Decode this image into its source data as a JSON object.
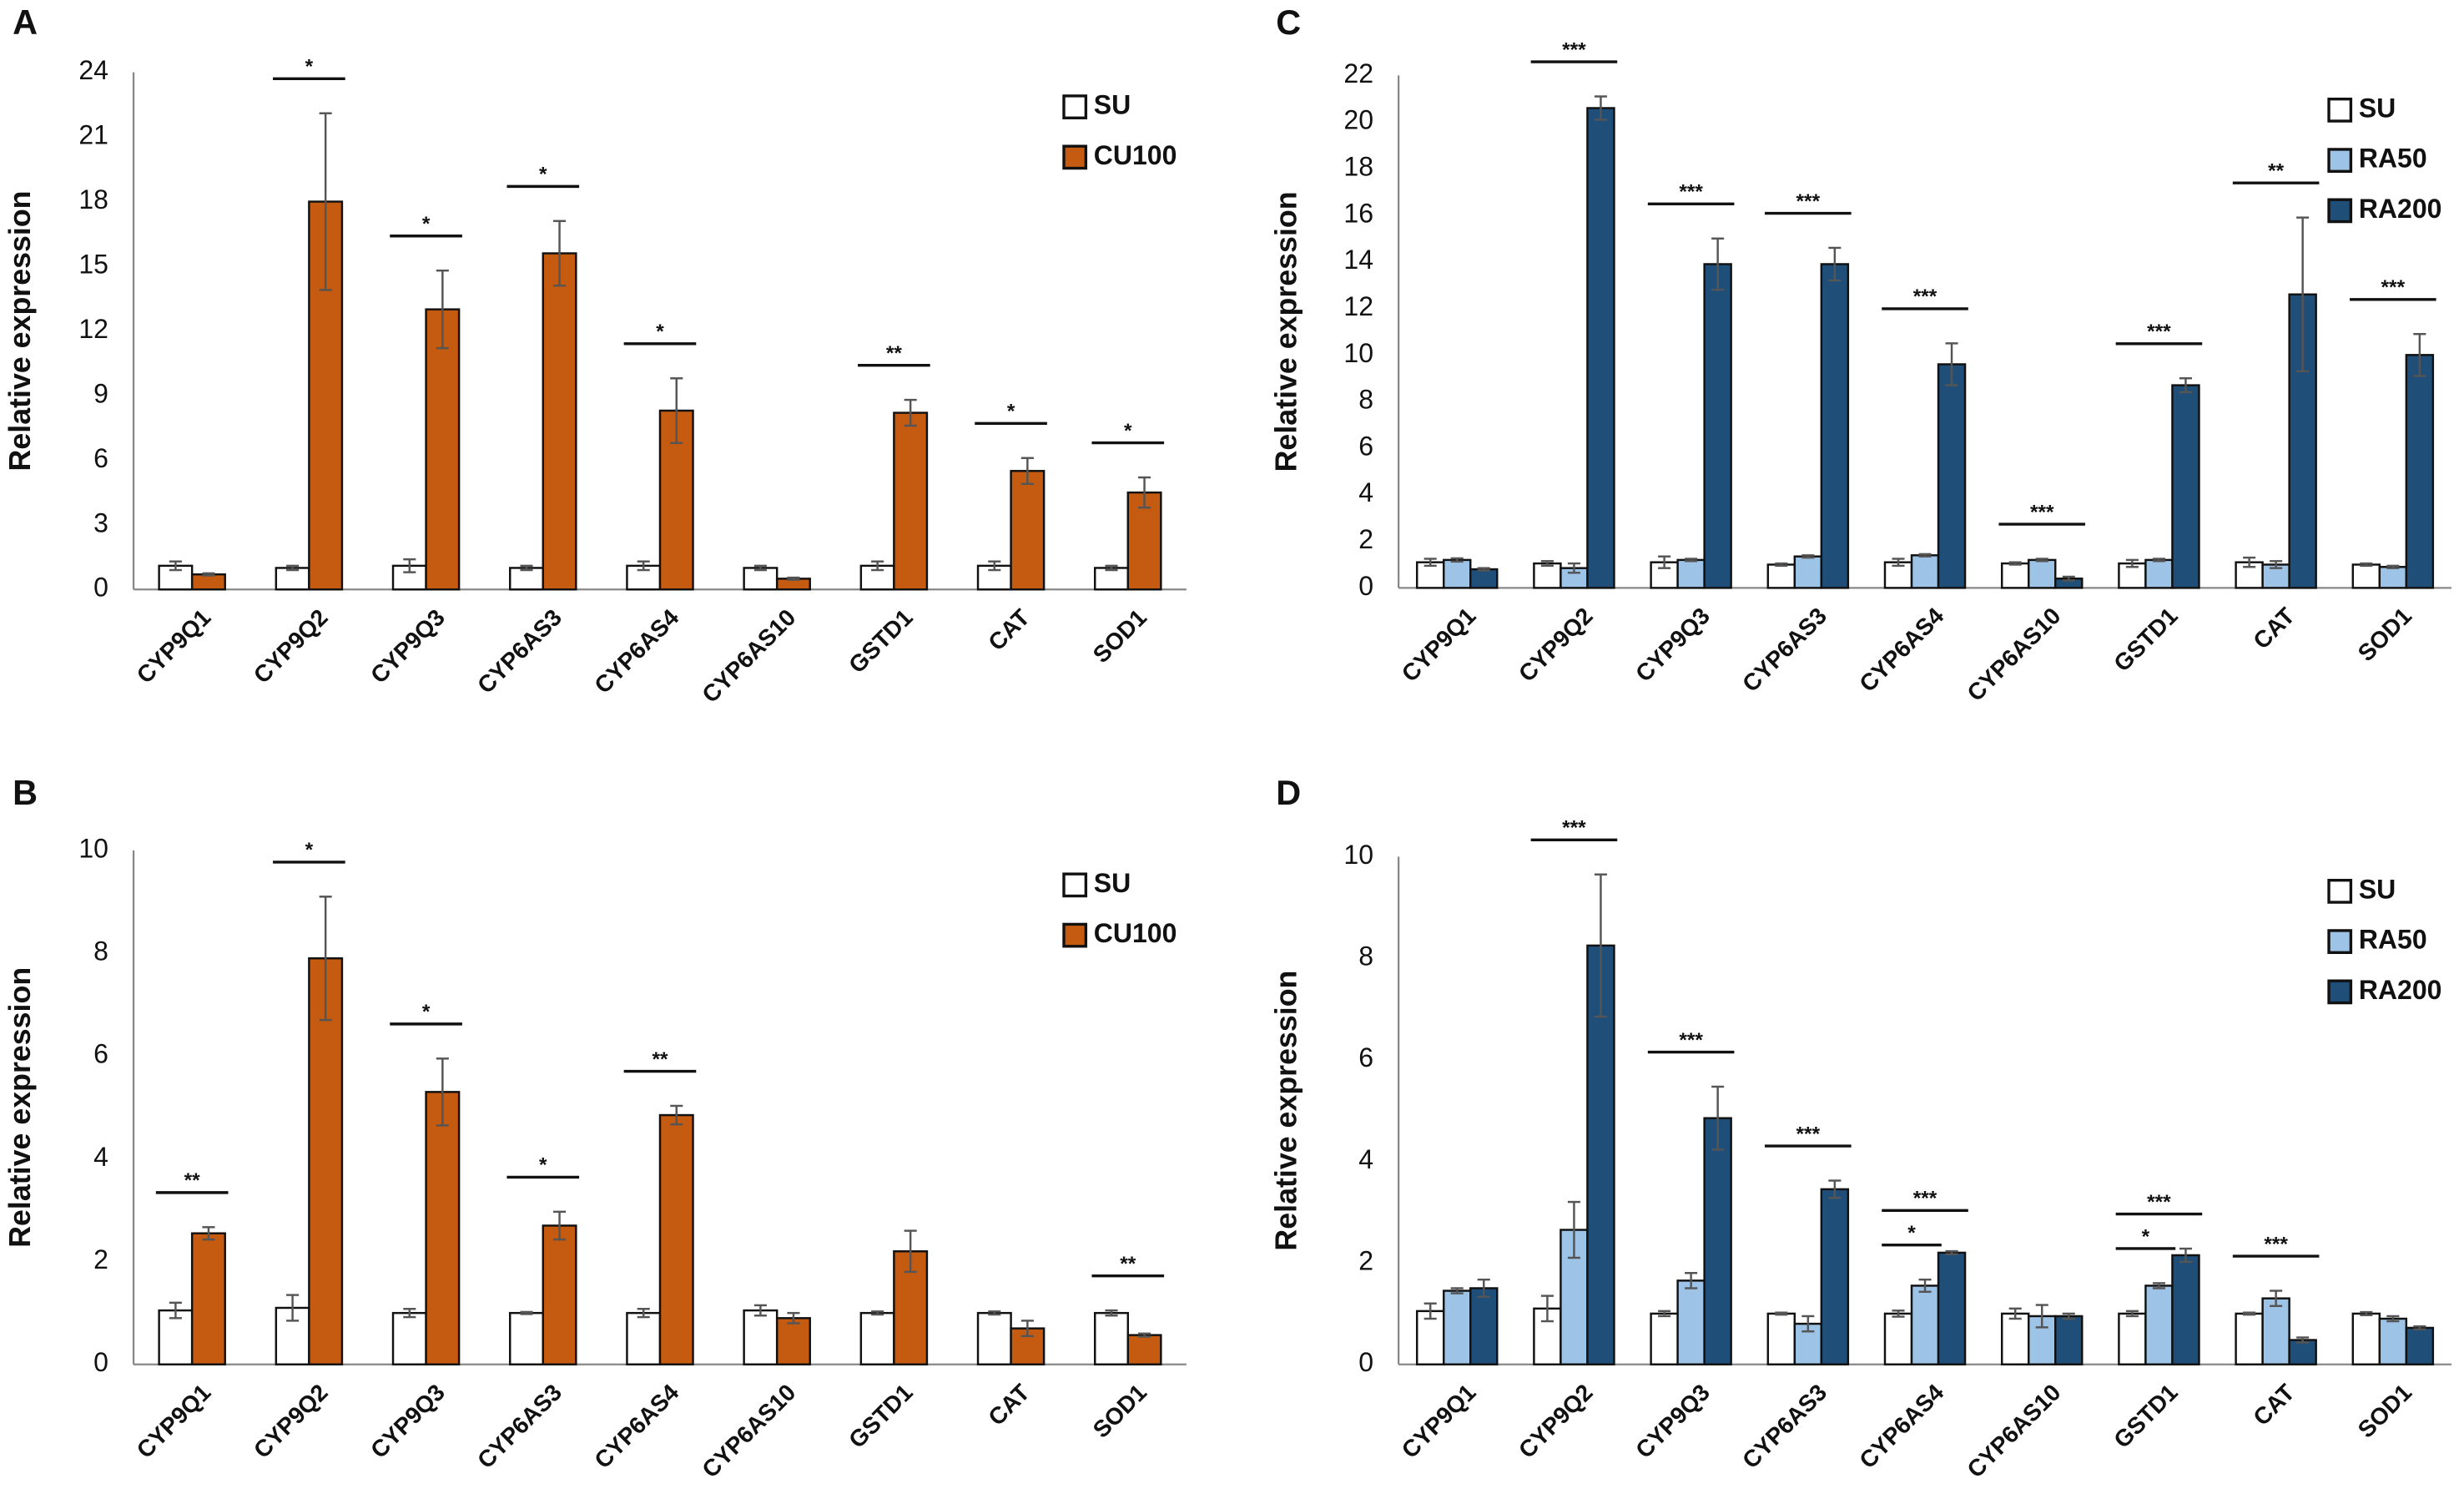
{
  "chart_data": [
    {
      "type": "bar",
      "panel": "A",
      "y_label": "Relative expression",
      "categories": [
        "CYP9Q1",
        "CYP9Q2",
        "CYP9Q3",
        "CYP6AS3",
        "CYP6AS4",
        "CYP6AS10",
        "GSTD1",
        "CAT",
        "SOD1"
      ],
      "series": [
        {
          "name": "SU",
          "color": "#ffffff",
          "values": [
            1.1,
            1.0,
            1.1,
            1.0,
            1.1,
            1.0,
            1.1,
            1.1,
            1.0
          ],
          "errors": [
            0.2,
            0.1,
            0.3,
            0.1,
            0.2,
            0.1,
            0.2,
            0.2,
            0.1
          ]
        },
        {
          "name": "CU100",
          "color": "#c55a11",
          "values": [
            0.7,
            18.0,
            13.0,
            15.6,
            8.3,
            0.5,
            8.2,
            5.5,
            4.5
          ],
          "errors": [
            0.05,
            4.1,
            1.8,
            1.5,
            1.5,
            0.05,
            0.6,
            0.6,
            0.7
          ],
          "significance": [
            null,
            "*",
            "*",
            "*",
            "*",
            null,
            "**",
            "*",
            "*"
          ]
        }
      ],
      "ylim": [
        0,
        24
      ],
      "yticks": [
        0,
        3,
        6,
        9,
        12,
        15,
        18,
        21,
        24
      ],
      "grid": false,
      "legend": "upper right"
    },
    {
      "type": "bar",
      "panel": "B",
      "y_label": "Relative expression",
      "categories": [
        "CYP9Q1",
        "CYP9Q2",
        "CYP9Q3",
        "CYP6AS3",
        "CYP6AS4",
        "CYP6AS10",
        "GSTD1",
        "CAT",
        "SOD1"
      ],
      "series": [
        {
          "name": "SU",
          "color": "#ffffff",
          "values": [
            1.05,
            1.1,
            1.0,
            1.0,
            1.0,
            1.05,
            1.0,
            1.0,
            1.0
          ],
          "errors": [
            0.15,
            0.25,
            0.08,
            0.02,
            0.08,
            0.1,
            0.03,
            0.03,
            0.05
          ]
        },
        {
          "name": "CU100",
          "color": "#c55a11",
          "values": [
            2.55,
            7.9,
            5.3,
            2.7,
            4.85,
            0.9,
            2.2,
            0.7,
            0.57
          ],
          "errors": [
            0.12,
            1.2,
            0.65,
            0.27,
            0.18,
            0.1,
            0.4,
            0.15,
            0.03
          ],
          "significance": [
            "**",
            "*",
            "*",
            "*",
            "**",
            null,
            null,
            null,
            "**"
          ]
        }
      ],
      "ylim": [
        0,
        10
      ],
      "yticks": [
        0,
        2,
        4,
        6,
        8,
        10
      ],
      "grid": false,
      "legend": "upper right"
    },
    {
      "type": "bar",
      "panel": "C",
      "y_label": "Relative expression",
      "categories": [
        "CYP9Q1",
        "CYP9Q2",
        "CYP9Q3",
        "CYP6AS3",
        "CYP6AS4",
        "CYP6AS10",
        "GSTD1",
        "CAT",
        "SOD1"
      ],
      "series": [
        {
          "name": "SU",
          "color": "#ffffff",
          "values": [
            1.1,
            1.05,
            1.1,
            1.0,
            1.1,
            1.05,
            1.05,
            1.1,
            1.0
          ],
          "errors": [
            0.15,
            0.1,
            0.25,
            0.05,
            0.15,
            0.05,
            0.15,
            0.2,
            0.05
          ]
        },
        {
          "name": "RA50",
          "color": "#9dc3e6",
          "values": [
            1.2,
            0.85,
            1.2,
            1.35,
            1.4,
            1.2,
            1.2,
            1.0,
            0.9
          ],
          "errors": [
            0.07,
            0.2,
            0.05,
            0.05,
            0.05,
            0.05,
            0.05,
            0.15,
            0.05
          ]
        },
        {
          "name": "RA200",
          "color": "#1f4e79",
          "values": [
            0.8,
            20.6,
            13.9,
            13.9,
            9.6,
            0.4,
            8.7,
            12.6,
            10.0
          ],
          "errors": [
            0.05,
            0.5,
            1.1,
            0.7,
            0.9,
            0.08,
            0.3,
            3.3,
            0.9
          ],
          "significance": [
            null,
            "***",
            "***",
            "***",
            "***",
            "***",
            "***",
            "**",
            "***"
          ]
        }
      ],
      "ylim": [
        0,
        22
      ],
      "yticks": [
        0,
        2,
        4,
        6,
        8,
        10,
        12,
        14,
        16,
        18,
        20,
        22
      ],
      "grid": false,
      "legend": "upper right"
    },
    {
      "type": "bar",
      "panel": "D",
      "y_label": "Relative expression",
      "categories": [
        "CYP9Q1",
        "CYP9Q2",
        "CYP9Q3",
        "CYP6AS3",
        "CYP6AS4",
        "CYP6AS10",
        "GSTD1",
        "CAT",
        "SOD1"
      ],
      "series": [
        {
          "name": "SU",
          "color": "#ffffff",
          "values": [
            1.05,
            1.1,
            1.0,
            1.0,
            1.0,
            1.0,
            1.0,
            1.0,
            1.0
          ],
          "errors": [
            0.15,
            0.25,
            0.05,
            0.02,
            0.06,
            0.1,
            0.05,
            0.02,
            0.03
          ]
        },
        {
          "name": "RA50",
          "color": "#9dc3e6",
          "values": [
            1.45,
            2.65,
            1.65,
            0.8,
            1.55,
            0.95,
            1.55,
            1.3,
            0.9
          ],
          "errors": [
            0.05,
            0.55,
            0.15,
            0.15,
            0.12,
            0.22,
            0.05,
            0.15,
            0.05
          ],
          "significance": [
            null,
            null,
            null,
            null,
            "*",
            null,
            "*",
            null,
            null
          ]
        },
        {
          "name": "RA200",
          "color": "#1f4e79",
          "values": [
            1.5,
            8.25,
            4.85,
            3.45,
            2.2,
            0.95,
            2.15,
            0.48,
            0.72
          ],
          "errors": [
            0.17,
            1.4,
            0.62,
            0.17,
            0.03,
            0.05,
            0.13,
            0.05,
            0.03
          ],
          "significance": [
            null,
            "***",
            "***",
            "***",
            "***",
            null,
            "***",
            "***",
            null
          ]
        }
      ],
      "ylim": [
        0,
        10
      ],
      "yticks": [
        0,
        2,
        4,
        6,
        8,
        10
      ],
      "grid": false,
      "legend": "upper right"
    }
  ]
}
